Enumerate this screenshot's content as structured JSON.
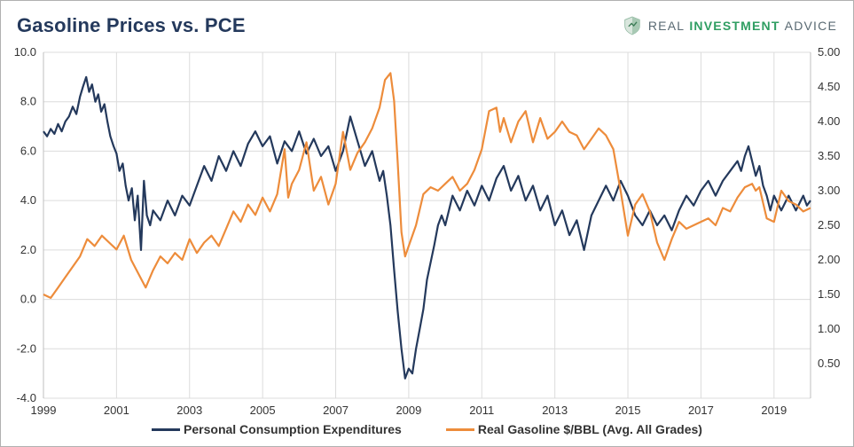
{
  "title": "Gasoline Prices vs. PCE",
  "brand": {
    "word1": "REAL",
    "word2": "INVESTMENT",
    "word3": "ADVICE",
    "accent_color": "#2f9e62",
    "text_color": "#5a6a73"
  },
  "chart": {
    "type": "line",
    "background_color": "#ffffff",
    "grid_color": "#dcdcdc",
    "axis_color": "#bfbfbf",
    "axis_label_color": "#333333",
    "label_fontsize": 13,
    "title_color": "#24395c",
    "title_fontsize": 22,
    "line_width": 2.2,
    "x": {
      "min": 1999,
      "max": 2020,
      "ticks": [
        1999,
        2001,
        2003,
        2005,
        2007,
        2009,
        2011,
        2013,
        2015,
        2017,
        2019
      ]
    },
    "y_left": {
      "min": -4.0,
      "max": 10.0,
      "ticks": [
        -4.0,
        -2.0,
        0.0,
        2.0,
        4.0,
        6.0,
        8.0,
        10.0
      ],
      "tick_labels": [
        "-4.0",
        "-2.0",
        "0.0",
        "2.0",
        "4.0",
        "6.0",
        "8.0",
        "10.0"
      ]
    },
    "y_right": {
      "min": 0.0,
      "max": 5.0,
      "ticks": [
        0.5,
        1.0,
        1.5,
        2.0,
        2.5,
        3.0,
        3.5,
        4.0,
        4.5,
        5.0
      ],
      "tick_labels": [
        "0.50",
        "1.00",
        "1.50",
        "2.00",
        "2.50",
        "3.00",
        "3.50",
        "4.00",
        "4.50",
        "5.00"
      ]
    },
    "series": [
      {
        "id": "pce",
        "label": "Personal Consumption Expenditures",
        "color": "#24395c",
        "axis": "left",
        "data": [
          [
            1999.0,
            6.8
          ],
          [
            1999.1,
            6.6
          ],
          [
            1999.2,
            6.9
          ],
          [
            1999.3,
            6.7
          ],
          [
            1999.4,
            7.1
          ],
          [
            1999.5,
            6.8
          ],
          [
            1999.6,
            7.2
          ],
          [
            1999.7,
            7.4
          ],
          [
            1999.8,
            7.8
          ],
          [
            1999.9,
            7.5
          ],
          [
            2000.0,
            8.2
          ],
          [
            2000.08,
            8.6
          ],
          [
            2000.17,
            9.0
          ],
          [
            2000.25,
            8.4
          ],
          [
            2000.33,
            8.7
          ],
          [
            2000.42,
            8.0
          ],
          [
            2000.5,
            8.3
          ],
          [
            2000.58,
            7.6
          ],
          [
            2000.67,
            7.9
          ],
          [
            2000.75,
            7.2
          ],
          [
            2000.83,
            6.6
          ],
          [
            2000.92,
            6.2
          ],
          [
            2001.0,
            5.9
          ],
          [
            2001.08,
            5.2
          ],
          [
            2001.17,
            5.5
          ],
          [
            2001.25,
            4.6
          ],
          [
            2001.33,
            4.0
          ],
          [
            2001.42,
            4.5
          ],
          [
            2001.5,
            3.2
          ],
          [
            2001.58,
            4.2
          ],
          [
            2001.67,
            2.0
          ],
          [
            2001.75,
            4.8
          ],
          [
            2001.83,
            3.4
          ],
          [
            2001.92,
            3.0
          ],
          [
            2002.0,
            3.6
          ],
          [
            2002.2,
            3.2
          ],
          [
            2002.4,
            4.0
          ],
          [
            2002.6,
            3.4
          ],
          [
            2002.8,
            4.2
          ],
          [
            2003.0,
            3.8
          ],
          [
            2003.2,
            4.6
          ],
          [
            2003.4,
            5.4
          ],
          [
            2003.6,
            4.8
          ],
          [
            2003.8,
            5.8
          ],
          [
            2004.0,
            5.2
          ],
          [
            2004.2,
            6.0
          ],
          [
            2004.4,
            5.4
          ],
          [
            2004.6,
            6.3
          ],
          [
            2004.8,
            6.8
          ],
          [
            2005.0,
            6.2
          ],
          [
            2005.2,
            6.6
          ],
          [
            2005.4,
            5.5
          ],
          [
            2005.6,
            6.4
          ],
          [
            2005.8,
            6.0
          ],
          [
            2006.0,
            6.8
          ],
          [
            2006.2,
            5.9
          ],
          [
            2006.4,
            6.5
          ],
          [
            2006.6,
            5.8
          ],
          [
            2006.8,
            6.2
          ],
          [
            2007.0,
            5.2
          ],
          [
            2007.2,
            6.0
          ],
          [
            2007.4,
            7.4
          ],
          [
            2007.6,
            6.4
          ],
          [
            2007.8,
            5.4
          ],
          [
            2008.0,
            6.0
          ],
          [
            2008.1,
            5.4
          ],
          [
            2008.2,
            4.8
          ],
          [
            2008.3,
            5.2
          ],
          [
            2008.4,
            4.2
          ],
          [
            2008.5,
            3.0
          ],
          [
            2008.6,
            1.2
          ],
          [
            2008.7,
            -0.5
          ],
          [
            2008.8,
            -2.0
          ],
          [
            2008.9,
            -3.2
          ],
          [
            2009.0,
            -2.8
          ],
          [
            2009.1,
            -3.0
          ],
          [
            2009.2,
            -2.0
          ],
          [
            2009.3,
            -1.2
          ],
          [
            2009.4,
            -0.4
          ],
          [
            2009.5,
            0.8
          ],
          [
            2009.6,
            1.5
          ],
          [
            2009.7,
            2.2
          ],
          [
            2009.8,
            3.0
          ],
          [
            2009.9,
            3.4
          ],
          [
            2010.0,
            3.0
          ],
          [
            2010.2,
            4.2
          ],
          [
            2010.4,
            3.6
          ],
          [
            2010.6,
            4.4
          ],
          [
            2010.8,
            3.8
          ],
          [
            2011.0,
            4.6
          ],
          [
            2011.2,
            4.0
          ],
          [
            2011.4,
            4.9
          ],
          [
            2011.6,
            5.4
          ],
          [
            2011.8,
            4.4
          ],
          [
            2012.0,
            5.0
          ],
          [
            2012.2,
            4.0
          ],
          [
            2012.4,
            4.6
          ],
          [
            2012.6,
            3.6
          ],
          [
            2012.8,
            4.2
          ],
          [
            2013.0,
            3.0
          ],
          [
            2013.2,
            3.6
          ],
          [
            2013.4,
            2.6
          ],
          [
            2013.6,
            3.2
          ],
          [
            2013.8,
            2.0
          ],
          [
            2014.0,
            3.4
          ],
          [
            2014.2,
            4.0
          ],
          [
            2014.4,
            4.6
          ],
          [
            2014.6,
            4.0
          ],
          [
            2014.8,
            4.8
          ],
          [
            2015.0,
            4.2
          ],
          [
            2015.2,
            3.4
          ],
          [
            2015.4,
            3.0
          ],
          [
            2015.6,
            3.6
          ],
          [
            2015.8,
            3.0
          ],
          [
            2016.0,
            3.4
          ],
          [
            2016.2,
            2.8
          ],
          [
            2016.4,
            3.6
          ],
          [
            2016.6,
            4.2
          ],
          [
            2016.8,
            3.8
          ],
          [
            2017.0,
            4.4
          ],
          [
            2017.2,
            4.8
          ],
          [
            2017.4,
            4.2
          ],
          [
            2017.6,
            4.8
          ],
          [
            2017.8,
            5.2
          ],
          [
            2018.0,
            5.6
          ],
          [
            2018.1,
            5.2
          ],
          [
            2018.2,
            5.8
          ],
          [
            2018.3,
            6.2
          ],
          [
            2018.4,
            5.6
          ],
          [
            2018.5,
            5.0
          ],
          [
            2018.6,
            5.4
          ],
          [
            2018.7,
            4.6
          ],
          [
            2018.8,
            4.2
          ],
          [
            2018.9,
            3.6
          ],
          [
            2019.0,
            4.2
          ],
          [
            2019.2,
            3.6
          ],
          [
            2019.4,
            4.2
          ],
          [
            2019.6,
            3.6
          ],
          [
            2019.8,
            4.2
          ],
          [
            2019.9,
            3.8
          ],
          [
            2020.0,
            4.0
          ]
        ]
      },
      {
        "id": "gas",
        "label": "Real Gasoline $/BBL (Avg. All Grades)",
        "color": "#ed8c3b",
        "axis": "right",
        "data": [
          [
            1999.0,
            1.5
          ],
          [
            1999.2,
            1.45
          ],
          [
            1999.4,
            1.6
          ],
          [
            1999.6,
            1.75
          ],
          [
            1999.8,
            1.9
          ],
          [
            2000.0,
            2.05
          ],
          [
            2000.2,
            2.3
          ],
          [
            2000.4,
            2.2
          ],
          [
            2000.6,
            2.35
          ],
          [
            2000.8,
            2.25
          ],
          [
            2001.0,
            2.15
          ],
          [
            2001.2,
            2.35
          ],
          [
            2001.4,
            2.0
          ],
          [
            2001.6,
            1.8
          ],
          [
            2001.8,
            1.6
          ],
          [
            2002.0,
            1.85
          ],
          [
            2002.2,
            2.05
          ],
          [
            2002.4,
            1.95
          ],
          [
            2002.6,
            2.1
          ],
          [
            2002.8,
            2.0
          ],
          [
            2003.0,
            2.3
          ],
          [
            2003.2,
            2.1
          ],
          [
            2003.4,
            2.25
          ],
          [
            2003.6,
            2.35
          ],
          [
            2003.8,
            2.2
          ],
          [
            2004.0,
            2.45
          ],
          [
            2004.2,
            2.7
          ],
          [
            2004.4,
            2.55
          ],
          [
            2004.6,
            2.8
          ],
          [
            2004.8,
            2.65
          ],
          [
            2005.0,
            2.9
          ],
          [
            2005.2,
            2.7
          ],
          [
            2005.4,
            2.95
          ],
          [
            2005.6,
            3.6
          ],
          [
            2005.7,
            2.9
          ],
          [
            2005.8,
            3.1
          ],
          [
            2006.0,
            3.3
          ],
          [
            2006.2,
            3.7
          ],
          [
            2006.4,
            3.0
          ],
          [
            2006.6,
            3.2
          ],
          [
            2006.8,
            2.8
          ],
          [
            2007.0,
            3.1
          ],
          [
            2007.2,
            3.85
          ],
          [
            2007.4,
            3.3
          ],
          [
            2007.6,
            3.55
          ],
          [
            2007.8,
            3.7
          ],
          [
            2008.0,
            3.9
          ],
          [
            2008.2,
            4.2
          ],
          [
            2008.35,
            4.6
          ],
          [
            2008.5,
            4.7
          ],
          [
            2008.6,
            4.3
          ],
          [
            2008.7,
            3.4
          ],
          [
            2008.8,
            2.4
          ],
          [
            2008.9,
            2.05
          ],
          [
            2009.0,
            2.2
          ],
          [
            2009.2,
            2.5
          ],
          [
            2009.4,
            2.95
          ],
          [
            2009.6,
            3.05
          ],
          [
            2009.8,
            3.0
          ],
          [
            2010.0,
            3.1
          ],
          [
            2010.2,
            3.2
          ],
          [
            2010.4,
            3.0
          ],
          [
            2010.6,
            3.1
          ],
          [
            2010.8,
            3.3
          ],
          [
            2011.0,
            3.6
          ],
          [
            2011.2,
            4.15
          ],
          [
            2011.4,
            4.2
          ],
          [
            2011.5,
            3.85
          ],
          [
            2011.6,
            4.05
          ],
          [
            2011.8,
            3.7
          ],
          [
            2012.0,
            4.0
          ],
          [
            2012.2,
            4.15
          ],
          [
            2012.4,
            3.7
          ],
          [
            2012.6,
            4.05
          ],
          [
            2012.8,
            3.75
          ],
          [
            2013.0,
            3.85
          ],
          [
            2013.2,
            4.0
          ],
          [
            2013.4,
            3.85
          ],
          [
            2013.6,
            3.8
          ],
          [
            2013.8,
            3.6
          ],
          [
            2014.0,
            3.75
          ],
          [
            2014.2,
            3.9
          ],
          [
            2014.4,
            3.8
          ],
          [
            2014.6,
            3.6
          ],
          [
            2014.8,
            3.0
          ],
          [
            2015.0,
            2.35
          ],
          [
            2015.2,
            2.8
          ],
          [
            2015.4,
            2.95
          ],
          [
            2015.6,
            2.7
          ],
          [
            2015.8,
            2.25
          ],
          [
            2016.0,
            2.0
          ],
          [
            2016.2,
            2.3
          ],
          [
            2016.4,
            2.55
          ],
          [
            2016.6,
            2.45
          ],
          [
            2016.8,
            2.5
          ],
          [
            2017.0,
            2.55
          ],
          [
            2017.2,
            2.6
          ],
          [
            2017.4,
            2.5
          ],
          [
            2017.6,
            2.75
          ],
          [
            2017.8,
            2.7
          ],
          [
            2018.0,
            2.9
          ],
          [
            2018.2,
            3.05
          ],
          [
            2018.4,
            3.1
          ],
          [
            2018.5,
            3.0
          ],
          [
            2018.6,
            3.05
          ],
          [
            2018.8,
            2.6
          ],
          [
            2019.0,
            2.55
          ],
          [
            2019.2,
            3.0
          ],
          [
            2019.4,
            2.85
          ],
          [
            2019.6,
            2.8
          ],
          [
            2019.8,
            2.7
          ],
          [
            2020.0,
            2.75
          ]
        ]
      }
    ]
  },
  "legend": {
    "s1": "Personal Consumption Expenditures",
    "s2": "Real Gasoline $/BBL (Avg. All Grades)"
  }
}
